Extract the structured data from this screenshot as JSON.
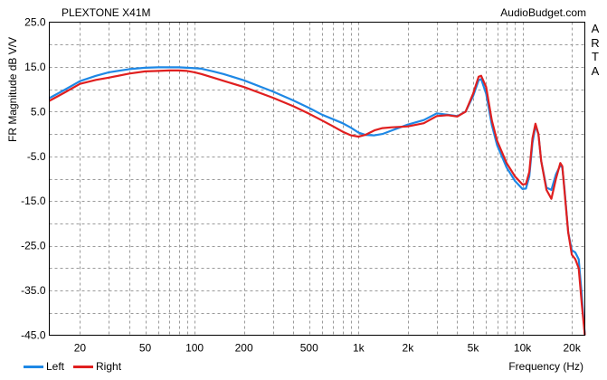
{
  "chart_data": {
    "type": "line",
    "title": "PLEXTONE X41M",
    "brand": "AudioBudget.com",
    "watermark_letters": [
      "A",
      "R",
      "T",
      "A"
    ],
    "xlabel": "Frequency (Hz)",
    "ylabel": "FR Magnitude dB V/V",
    "x_scale": "log",
    "xlim": [
      13,
      24000
    ],
    "ylim": [
      -45,
      25
    ],
    "x_ticks": [
      {
        "value": 20,
        "label": "20"
      },
      {
        "value": 50,
        "label": "50"
      },
      {
        "value": 100,
        "label": "100"
      },
      {
        "value": 200,
        "label": "200"
      },
      {
        "value": 500,
        "label": "500"
      },
      {
        "value": 1000,
        "label": "1k"
      },
      {
        "value": 2000,
        "label": "2k"
      },
      {
        "value": 5000,
        "label": "5k"
      },
      {
        "value": 10000,
        "label": "10k"
      },
      {
        "value": 20000,
        "label": "20k"
      }
    ],
    "y_ticks": [
      {
        "value": 25,
        "label": "25.0"
      },
      {
        "value": 15,
        "label": "15.0"
      },
      {
        "value": 5,
        "label": "5.0"
      },
      {
        "value": -5,
        "label": "-5.0"
      },
      {
        "value": -15,
        "label": "-15.0"
      },
      {
        "value": -25,
        "label": "-25.0"
      },
      {
        "value": -35,
        "label": "-35.0"
      },
      {
        "value": -45,
        "label": "-45.0"
      }
    ],
    "grid": true,
    "legend_position": "bottom-left",
    "series": [
      {
        "name": "Left",
        "color": "#1e88e5",
        "points": [
          [
            13,
            8
          ],
          [
            16,
            9.8
          ],
          [
            20,
            11.8
          ],
          [
            25,
            13
          ],
          [
            30,
            13.8
          ],
          [
            40,
            14.5
          ],
          [
            50,
            14.8
          ],
          [
            60,
            14.9
          ],
          [
            70,
            14.9
          ],
          [
            80,
            14.9
          ],
          [
            90,
            14.8
          ],
          [
            100,
            14.7
          ],
          [
            110,
            14.6
          ],
          [
            130,
            14
          ],
          [
            150,
            13.4
          ],
          [
            200,
            12
          ],
          [
            300,
            9.5
          ],
          [
            400,
            7.5
          ],
          [
            500,
            5.8
          ],
          [
            600,
            4.3
          ],
          [
            700,
            3.3
          ],
          [
            800,
            2.4
          ],
          [
            900,
            1.4
          ],
          [
            1000,
            0.3
          ],
          [
            1100,
            -0.2
          ],
          [
            1250,
            -0.3
          ],
          [
            1400,
            0
          ],
          [
            1600,
            0.8
          ],
          [
            1800,
            1.5
          ],
          [
            2000,
            2.1
          ],
          [
            2500,
            3.1
          ],
          [
            3000,
            4.6
          ],
          [
            3500,
            4.3
          ],
          [
            4000,
            4
          ],
          [
            4500,
            5
          ],
          [
            5000,
            8.5
          ],
          [
            5400,
            12
          ],
          [
            5600,
            12.3
          ],
          [
            6000,
            9
          ],
          [
            6500,
            2
          ],
          [
            7000,
            -2.5
          ],
          [
            8000,
            -7.5
          ],
          [
            9000,
            -10.5
          ],
          [
            10000,
            -12.3
          ],
          [
            10500,
            -12.2
          ],
          [
            11000,
            -9.5
          ],
          [
            11500,
            -2
          ],
          [
            12000,
            1.8
          ],
          [
            12500,
            0
          ],
          [
            13000,
            -6
          ],
          [
            14000,
            -12
          ],
          [
            15000,
            -12.5
          ],
          [
            16000,
            -9
          ],
          [
            17000,
            -7
          ],
          [
            17500,
            -7.5
          ],
          [
            18000,
            -12
          ],
          [
            19000,
            -22
          ],
          [
            20000,
            -26
          ],
          [
            21000,
            -26.5
          ],
          [
            22000,
            -28
          ],
          [
            23000,
            -36
          ],
          [
            24000,
            -45
          ]
        ]
      },
      {
        "name": "Right",
        "color": "#e01f1f",
        "points": [
          [
            13,
            7.4
          ],
          [
            16,
            9.2
          ],
          [
            20,
            11.2
          ],
          [
            25,
            12.1
          ],
          [
            30,
            12.6
          ],
          [
            40,
            13.5
          ],
          [
            50,
            14
          ],
          [
            60,
            14.1
          ],
          [
            70,
            14.2
          ],
          [
            80,
            14.2
          ],
          [
            90,
            14.1
          ],
          [
            100,
            13.8
          ],
          [
            110,
            13.4
          ],
          [
            130,
            12.6
          ],
          [
            150,
            11.9
          ],
          [
            200,
            10.5
          ],
          [
            300,
            8.1
          ],
          [
            400,
            6.2
          ],
          [
            500,
            4.5
          ],
          [
            600,
            3
          ],
          [
            700,
            1.7
          ],
          [
            800,
            0.5
          ],
          [
            900,
            -0.3
          ],
          [
            1000,
            -0.6
          ],
          [
            1100,
            -0.2
          ],
          [
            1250,
            0.8
          ],
          [
            1400,
            1.3
          ],
          [
            1600,
            1.5
          ],
          [
            1800,
            1.6
          ],
          [
            2000,
            1.7
          ],
          [
            2500,
            2.4
          ],
          [
            3000,
            4
          ],
          [
            3500,
            4.2
          ],
          [
            4000,
            3.9
          ],
          [
            4500,
            5
          ],
          [
            5000,
            9
          ],
          [
            5400,
            12.8
          ],
          [
            5600,
            13
          ],
          [
            6000,
            10.5
          ],
          [
            6500,
            3
          ],
          [
            7000,
            -1.5
          ],
          [
            8000,
            -6.5
          ],
          [
            9000,
            -9.5
          ],
          [
            10000,
            -11.3
          ],
          [
            10500,
            -11.2
          ],
          [
            11000,
            -8.5
          ],
          [
            11500,
            -1
          ],
          [
            12000,
            2.3
          ],
          [
            12500,
            0
          ],
          [
            13000,
            -6
          ],
          [
            14000,
            -12.5
          ],
          [
            15000,
            -14.5
          ],
          [
            16000,
            -10
          ],
          [
            17000,
            -6.5
          ],
          [
            17500,
            -7.2
          ],
          [
            18000,
            -12.5
          ],
          [
            19000,
            -22
          ],
          [
            20000,
            -27
          ],
          [
            21000,
            -28
          ],
          [
            22000,
            -30
          ],
          [
            23000,
            -38
          ],
          [
            24000,
            -45
          ]
        ]
      }
    ]
  }
}
